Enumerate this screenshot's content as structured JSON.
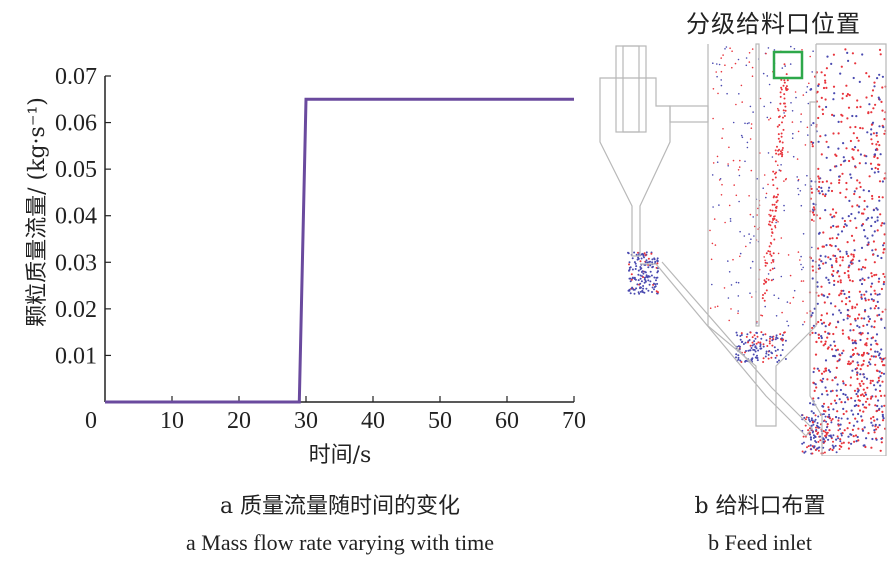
{
  "chart_data": {
    "type": "line",
    "title": "",
    "xlabel": "时间/s",
    "ylabel": "颗粒质量流量/ (kg·s⁻¹)",
    "xlim": [
      0,
      70
    ],
    "ylim": [
      0,
      0.07
    ],
    "x_ticks": [
      "0",
      "10",
      "20",
      "30",
      "40",
      "50",
      "60",
      "70"
    ],
    "y_ticks": [
      "0.01",
      "0.02",
      "0.03",
      "0.04",
      "0.05",
      "0.06",
      "0.07"
    ],
    "grid": false,
    "series": [
      {
        "color": "#6a4a9e",
        "x": [
          0,
          29,
          30,
          70
        ],
        "y": [
          0,
          0,
          0.065,
          0.065
        ]
      }
    ]
  },
  "captions": {
    "a_cn": "a  质量流量随时间的变化",
    "a_en": "a  Mass flow rate varying with time",
    "b_cn": "b  给料口布置",
    "b_en": "b  Feed inlet"
  },
  "feed_panel": {
    "title": "分级给料口位置",
    "marker_color": "#2ea84a",
    "particle_colors": [
      "#e8343c",
      "#4a4ab0"
    ]
  }
}
